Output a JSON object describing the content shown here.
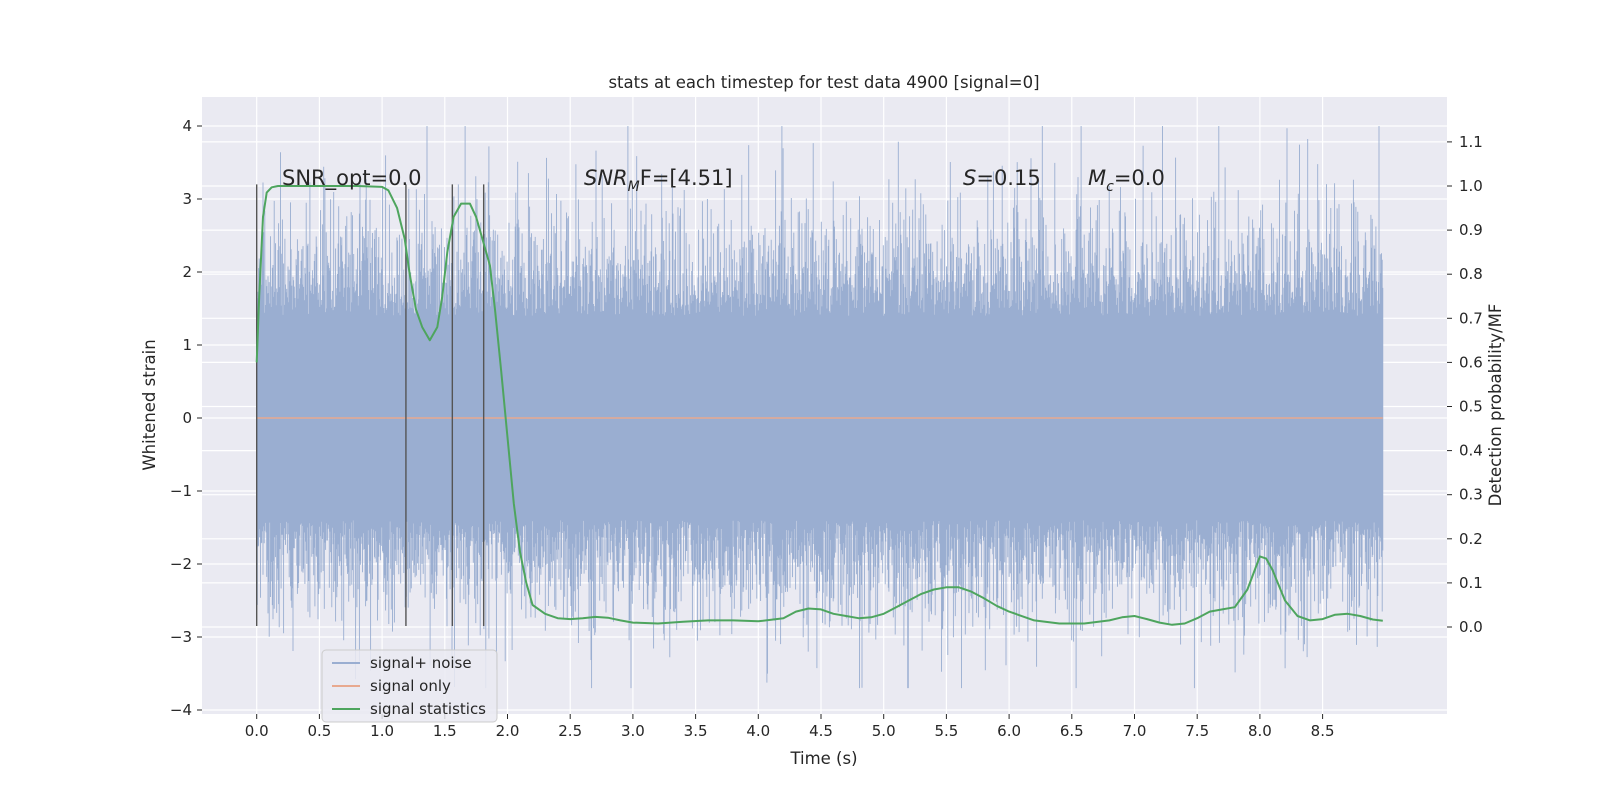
{
  "chart_data": {
    "type": "line",
    "title": "stats at each timestep for test data 4900 [signal=0]",
    "xlabel": "Time (s)",
    "ylabel_left": "Whitened strain",
    "ylabel_right": "Detection probability/MF",
    "xlim": [
      -0.44,
      9.44
    ],
    "ylim_left": [
      -4.1,
      4.4
    ],
    "ylim_right": [
      -0.195,
      1.185
    ],
    "grid": true,
    "legend_position": "lower-left",
    "x_ticks": [
      "0.0",
      "0.5",
      "1.0",
      "1.5",
      "2.0",
      "2.5",
      "3.0",
      "3.5",
      "4.0",
      "4.5",
      "5.0",
      "5.5",
      "6.0",
      "6.5",
      "7.0",
      "7.5",
      "8.0",
      "8.5"
    ],
    "y_left_ticks": [
      "4",
      "3",
      "2",
      "1",
      "0",
      "−1",
      "−2",
      "−3",
      "−4"
    ],
    "y_right_ticks": [
      "1.1",
      "1.0",
      "0.9",
      "0.8",
      "0.7",
      "0.6",
      "0.5",
      "0.4",
      "0.3",
      "0.2",
      "0.1",
      "0.0"
    ],
    "annotations": {
      "snr_opt": "SNR_opt=0.0",
      "snr_mf": "SNR",
      "snr_mf_sub": "M",
      "snr_mf_rest": "F=[4.51]",
      "s_label": "S",
      "s_rest": "=0.15",
      "mc_label": "M",
      "mc_sub": "c",
      "mc_rest": "=0.0"
    },
    "vertical_markers": [
      0.0,
      1.19,
      1.56,
      1.81
    ],
    "series": [
      {
        "name": "signal+ noise",
        "color": "#9aaed1",
        "x_range": [
          0.0,
          8.98
        ],
        "typical_envelope": [
          -1.4,
          1.4
        ],
        "extreme_envelope": [
          -3.7,
          4.0
        ]
      },
      {
        "name": "signal only",
        "color": "#e8a98f",
        "x": [
          0.0,
          8.98
        ],
        "y": [
          0.0,
          0.0
        ]
      },
      {
        "name": "signal statistics",
        "color": "#4ea55e",
        "x": [
          0.0,
          0.02,
          0.05,
          0.08,
          0.12,
          0.17,
          0.22,
          0.3,
          0.45,
          0.6,
          0.8,
          1.0,
          1.05,
          1.12,
          1.18,
          1.22,
          1.27,
          1.32,
          1.38,
          1.44,
          1.48,
          1.52,
          1.57,
          1.63,
          1.7,
          1.75,
          1.8,
          1.86,
          1.9,
          1.95,
          2.0,
          2.05,
          2.1,
          2.15,
          2.2,
          2.3,
          2.4,
          2.5,
          2.6,
          2.7,
          2.8,
          2.9,
          3.0,
          3.2,
          3.4,
          3.6,
          3.8,
          4.0,
          4.2,
          4.3,
          4.4,
          4.5,
          4.6,
          4.7,
          4.8,
          4.9,
          5.0,
          5.1,
          5.2,
          5.3,
          5.4,
          5.5,
          5.6,
          5.7,
          5.8,
          5.9,
          6.0,
          6.2,
          6.4,
          6.6,
          6.8,
          6.9,
          7.0,
          7.1,
          7.2,
          7.3,
          7.4,
          7.5,
          7.6,
          7.7,
          7.8,
          7.9,
          8.0,
          8.05,
          8.1,
          8.15,
          8.2,
          8.3,
          8.4,
          8.5,
          8.6,
          8.7,
          8.8,
          8.9,
          8.98
        ],
        "y": [
          0.6,
          0.75,
          0.93,
          0.985,
          0.997,
          1.0,
          1.0,
          1.0,
          1.0,
          1.0,
          1.0,
          0.998,
          0.99,
          0.95,
          0.88,
          0.8,
          0.72,
          0.68,
          0.65,
          0.68,
          0.75,
          0.85,
          0.93,
          0.96,
          0.96,
          0.93,
          0.88,
          0.82,
          0.72,
          0.58,
          0.43,
          0.28,
          0.17,
          0.1,
          0.05,
          0.03,
          0.02,
          0.018,
          0.02,
          0.023,
          0.021,
          0.015,
          0.01,
          0.008,
          0.012,
          0.015,
          0.015,
          0.013,
          0.02,
          0.035,
          0.042,
          0.04,
          0.03,
          0.025,
          0.02,
          0.022,
          0.03,
          0.045,
          0.06,
          0.075,
          0.085,
          0.09,
          0.09,
          0.08,
          0.065,
          0.048,
          0.035,
          0.015,
          0.008,
          0.008,
          0.015,
          0.022,
          0.025,
          0.018,
          0.01,
          0.005,
          0.008,
          0.02,
          0.035,
          0.04,
          0.045,
          0.085,
          0.16,
          0.155,
          0.13,
          0.095,
          0.06,
          0.025,
          0.015,
          0.018,
          0.028,
          0.03,
          0.025,
          0.017,
          0.014
        ]
      }
    ]
  }
}
